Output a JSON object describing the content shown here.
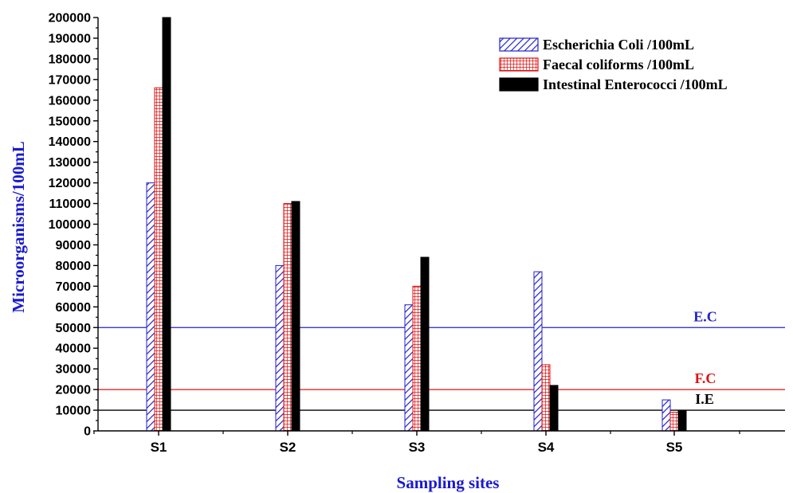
{
  "chart_data": {
    "type": "bar",
    "xlabel": "Sampling sites",
    "ylabel": "Microorganisms/100mL",
    "ylim": [
      0,
      200000
    ],
    "yticks": [
      0,
      10000,
      20000,
      30000,
      40000,
      50000,
      60000,
      70000,
      80000,
      90000,
      100000,
      110000,
      120000,
      130000,
      140000,
      150000,
      160000,
      170000,
      180000,
      190000,
      200000
    ],
    "ytick_labels": [
      "0",
      "10000",
      "20000",
      "30000",
      "40000",
      "50000",
      "60000",
      "70000",
      "80000",
      "90000",
      "100000",
      "110000",
      "120000",
      "130000",
      "140000",
      "150000",
      "160000",
      "170000",
      "180000",
      "190000",
      "200000"
    ],
    "categories": [
      "S1",
      "S2",
      "S3",
      "S4",
      "S5"
    ],
    "series": [
      {
        "name": "Escherichia Coli /100mL",
        "values": [
          120000,
          80000,
          61000,
          77000,
          15000
        ],
        "color": "#2222cc",
        "pattern": "diagonal-hatch"
      },
      {
        "name": "Faecal coliforms /100mL",
        "values": [
          166000,
          110000,
          70000,
          32000,
          9000
        ],
        "color": "#e01010",
        "pattern": "grid"
      },
      {
        "name": "Intestinal Enterococci /100mL",
        "values": [
          200000,
          111000,
          84000,
          22000,
          10000
        ],
        "color": "#000000",
        "pattern": "solid"
      }
    ],
    "reference_lines": [
      {
        "label": "E.C",
        "value": 50000,
        "color": "#2222cc"
      },
      {
        "label": "F.C",
        "value": 20000,
        "color": "#e01010"
      },
      {
        "label": "I.E",
        "value": 10000,
        "color": "#000000"
      }
    ],
    "legend_position": "top-right",
    "grid": false
  }
}
